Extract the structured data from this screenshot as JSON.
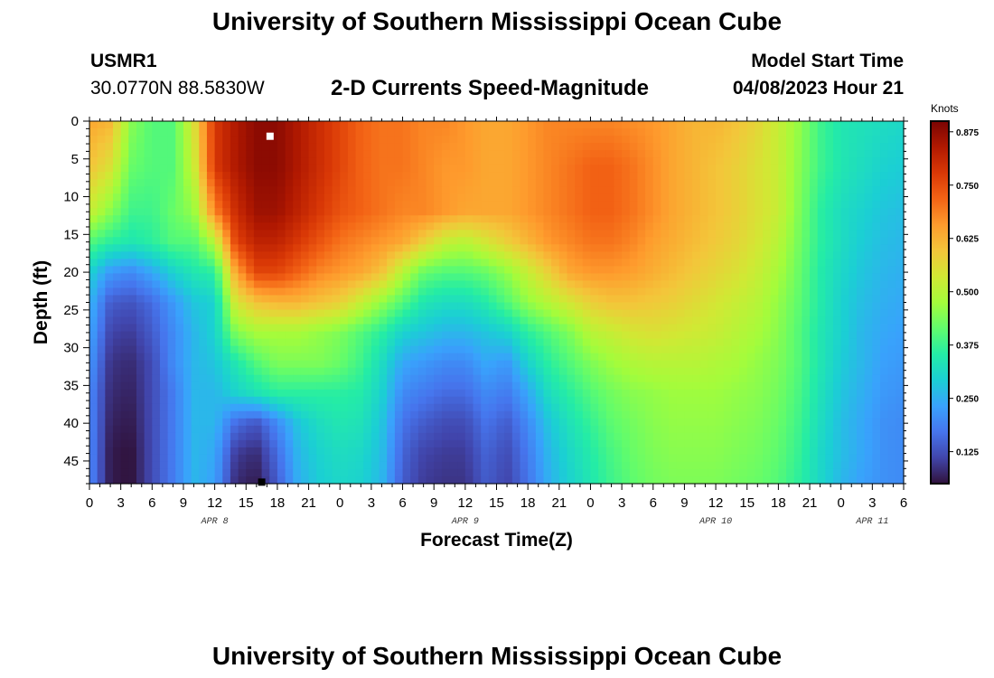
{
  "page": {
    "title": "University of Southern Mississippi Ocean Cube",
    "footer_title": "University of Southern Mississippi Ocean Cube",
    "station_id": "USMR1",
    "coordinates": "30.0770N  88.5830W",
    "plot_title": "2-D Currents Speed-Magnitude",
    "model_start_label": "Model Start Time",
    "model_start_value": "04/08/2023 Hour 21"
  },
  "colors": {
    "background": "#ffffff",
    "colormap": [
      "#30123b",
      "#4145ab",
      "#4675ed",
      "#39a2fc",
      "#1bcfd4",
      "#24eca6",
      "#61fc6c",
      "#a4fc3b",
      "#d1e834",
      "#f3c63a",
      "#fe9b2d",
      "#f36315",
      "#d93806",
      "#b11901",
      "#7a0403"
    ]
  },
  "chart_data": {
    "type": "heatmap",
    "title": "2-D Currents Speed-Magnitude",
    "xlabel": "Forecast Time(Z)",
    "ylabel": "Depth (ft)",
    "x_unit": "forecast hours from 04/08/2023 00Z",
    "xlim": [
      0,
      78
    ],
    "ylim": [
      0,
      48
    ],
    "y_inverted": true,
    "x_ticks": [
      {
        "hour": 0,
        "label": "0"
      },
      {
        "hour": 3,
        "label": "3"
      },
      {
        "hour": 6,
        "label": "6"
      },
      {
        "hour": 9,
        "label": "9"
      },
      {
        "hour": 12,
        "label": "12"
      },
      {
        "hour": 15,
        "label": "15"
      },
      {
        "hour": 18,
        "label": "18"
      },
      {
        "hour": 21,
        "label": "21"
      },
      {
        "hour": 24,
        "label": "0"
      },
      {
        "hour": 27,
        "label": "3"
      },
      {
        "hour": 30,
        "label": "6"
      },
      {
        "hour": 33,
        "label": "9"
      },
      {
        "hour": 36,
        "label": "12"
      },
      {
        "hour": 39,
        "label": "15"
      },
      {
        "hour": 42,
        "label": "18"
      },
      {
        "hour": 45,
        "label": "21"
      },
      {
        "hour": 48,
        "label": "0"
      },
      {
        "hour": 51,
        "label": "3"
      },
      {
        "hour": 54,
        "label": "6"
      },
      {
        "hour": 57,
        "label": "9"
      },
      {
        "hour": 60,
        "label": "12"
      },
      {
        "hour": 63,
        "label": "15"
      },
      {
        "hour": 66,
        "label": "18"
      },
      {
        "hour": 69,
        "label": "21"
      },
      {
        "hour": 72,
        "label": "0"
      },
      {
        "hour": 75,
        "label": "3"
      },
      {
        "hour": 78,
        "label": "6"
      }
    ],
    "date_labels": [
      {
        "hour": 12,
        "label": "APR 8"
      },
      {
        "hour": 36,
        "label": "APR 9"
      },
      {
        "hour": 60,
        "label": "APR 10"
      },
      {
        "hour": 75,
        "label": "APR 11"
      }
    ],
    "y_ticks": [
      0,
      5,
      10,
      15,
      20,
      25,
      30,
      35,
      40,
      45
    ],
    "colorbar": {
      "units": "Knots",
      "range": [
        0.05,
        0.9
      ],
      "ticks": [
        0.125,
        0.25,
        0.375,
        0.5,
        0.625,
        0.75,
        0.875
      ],
      "tick_labels": [
        "0.125",
        "0.250",
        "0.375",
        "0.500",
        "0.625",
        "0.750",
        "0.875"
      ]
    },
    "depths_ft": [
      0,
      6,
      12,
      16,
      20,
      24,
      28,
      32,
      36,
      40,
      44,
      48
    ],
    "hours": [
      0,
      2,
      4,
      6,
      8,
      10,
      12,
      14,
      16,
      18,
      20,
      22,
      24,
      26,
      28,
      30,
      32,
      34,
      36,
      38,
      40,
      42,
      44,
      46,
      48,
      50,
      52,
      54,
      56,
      58,
      60,
      62,
      64,
      66,
      68,
      70,
      72,
      74,
      76,
      78
    ],
    "speed_knots": [
      [
        0.64,
        0.62,
        0.45,
        0.4,
        0.4,
        0.55,
        0.78,
        0.84,
        0.88,
        0.88,
        0.84,
        0.8,
        0.76,
        0.72,
        0.7,
        0.7,
        0.68,
        0.68,
        0.66,
        0.64,
        0.64,
        0.66,
        0.68,
        0.68,
        0.68,
        0.68,
        0.67,
        0.66,
        0.64,
        0.62,
        0.62,
        0.6,
        0.57,
        0.52,
        0.46,
        0.38,
        0.34,
        0.33,
        0.32,
        0.31
      ],
      [
        0.6,
        0.55,
        0.42,
        0.4,
        0.4,
        0.52,
        0.78,
        0.84,
        0.88,
        0.88,
        0.84,
        0.8,
        0.76,
        0.72,
        0.7,
        0.7,
        0.68,
        0.66,
        0.66,
        0.64,
        0.64,
        0.66,
        0.68,
        0.7,
        0.72,
        0.72,
        0.7,
        0.67,
        0.64,
        0.62,
        0.6,
        0.58,
        0.55,
        0.52,
        0.45,
        0.38,
        0.34,
        0.32,
        0.3,
        0.29
      ],
      [
        0.52,
        0.45,
        0.38,
        0.38,
        0.42,
        0.46,
        0.68,
        0.8,
        0.86,
        0.86,
        0.82,
        0.78,
        0.74,
        0.72,
        0.7,
        0.68,
        0.68,
        0.66,
        0.64,
        0.64,
        0.64,
        0.66,
        0.68,
        0.7,
        0.72,
        0.72,
        0.7,
        0.67,
        0.64,
        0.62,
        0.6,
        0.58,
        0.55,
        0.52,
        0.44,
        0.36,
        0.32,
        0.3,
        0.28,
        0.27
      ],
      [
        0.4,
        0.36,
        0.34,
        0.36,
        0.4,
        0.4,
        0.5,
        0.76,
        0.82,
        0.82,
        0.78,
        0.74,
        0.7,
        0.68,
        0.66,
        0.64,
        0.58,
        0.52,
        0.5,
        0.54,
        0.58,
        0.62,
        0.66,
        0.68,
        0.7,
        0.7,
        0.68,
        0.65,
        0.63,
        0.61,
        0.59,
        0.57,
        0.54,
        0.5,
        0.43,
        0.36,
        0.32,
        0.29,
        0.27,
        0.26
      ],
      [
        0.3,
        0.22,
        0.2,
        0.24,
        0.3,
        0.34,
        0.36,
        0.64,
        0.76,
        0.76,
        0.72,
        0.68,
        0.66,
        0.64,
        0.6,
        0.5,
        0.42,
        0.4,
        0.4,
        0.42,
        0.46,
        0.52,
        0.58,
        0.64,
        0.66,
        0.66,
        0.65,
        0.63,
        0.61,
        0.59,
        0.57,
        0.55,
        0.52,
        0.48,
        0.42,
        0.35,
        0.31,
        0.28,
        0.26,
        0.25
      ],
      [
        0.26,
        0.14,
        0.13,
        0.16,
        0.22,
        0.28,
        0.3,
        0.54,
        0.6,
        0.62,
        0.62,
        0.6,
        0.58,
        0.52,
        0.46,
        0.4,
        0.34,
        0.32,
        0.32,
        0.35,
        0.4,
        0.46,
        0.5,
        0.54,
        0.58,
        0.6,
        0.6,
        0.59,
        0.58,
        0.56,
        0.54,
        0.52,
        0.5,
        0.46,
        0.41,
        0.35,
        0.3,
        0.27,
        0.25,
        0.24
      ],
      [
        0.24,
        0.11,
        0.1,
        0.14,
        0.2,
        0.26,
        0.3,
        0.44,
        0.48,
        0.48,
        0.48,
        0.46,
        0.44,
        0.4,
        0.36,
        0.3,
        0.28,
        0.26,
        0.26,
        0.28,
        0.3,
        0.36,
        0.4,
        0.44,
        0.5,
        0.52,
        0.54,
        0.55,
        0.54,
        0.53,
        0.52,
        0.5,
        0.48,
        0.45,
        0.4,
        0.34,
        0.3,
        0.26,
        0.24,
        0.23
      ],
      [
        0.22,
        0.09,
        0.08,
        0.12,
        0.2,
        0.26,
        0.28,
        0.34,
        0.4,
        0.44,
        0.44,
        0.44,
        0.42,
        0.38,
        0.32,
        0.24,
        0.22,
        0.2,
        0.2,
        0.24,
        0.22,
        0.3,
        0.36,
        0.4,
        0.44,
        0.47,
        0.49,
        0.5,
        0.5,
        0.5,
        0.49,
        0.48,
        0.46,
        0.44,
        0.4,
        0.34,
        0.29,
        0.26,
        0.23,
        0.22
      ],
      [
        0.2,
        0.08,
        0.07,
        0.12,
        0.18,
        0.26,
        0.26,
        0.3,
        0.33,
        0.36,
        0.36,
        0.36,
        0.36,
        0.35,
        0.3,
        0.2,
        0.18,
        0.16,
        0.16,
        0.2,
        0.18,
        0.24,
        0.32,
        0.36,
        0.4,
        0.43,
        0.45,
        0.46,
        0.47,
        0.47,
        0.47,
        0.46,
        0.45,
        0.43,
        0.39,
        0.33,
        0.28,
        0.25,
        0.22,
        0.21
      ],
      [
        0.2,
        0.07,
        0.06,
        0.12,
        0.18,
        0.26,
        0.26,
        0.16,
        0.13,
        0.2,
        0.28,
        0.32,
        0.34,
        0.33,
        0.28,
        0.17,
        0.14,
        0.12,
        0.12,
        0.17,
        0.14,
        0.2,
        0.28,
        0.33,
        0.37,
        0.41,
        0.43,
        0.45,
        0.46,
        0.46,
        0.46,
        0.45,
        0.44,
        0.42,
        0.38,
        0.32,
        0.27,
        0.24,
        0.21,
        0.2
      ],
      [
        0.2,
        0.06,
        0.05,
        0.12,
        0.18,
        0.26,
        0.24,
        0.1,
        0.08,
        0.16,
        0.26,
        0.3,
        0.32,
        0.31,
        0.27,
        0.15,
        0.11,
        0.1,
        0.1,
        0.15,
        0.12,
        0.18,
        0.26,
        0.31,
        0.35,
        0.39,
        0.42,
        0.44,
        0.45,
        0.45,
        0.45,
        0.44,
        0.43,
        0.41,
        0.37,
        0.31,
        0.27,
        0.24,
        0.21,
        0.2
      ],
      [
        0.2,
        0.06,
        0.05,
        0.12,
        0.18,
        0.26,
        0.23,
        0.08,
        0.06,
        0.14,
        0.25,
        0.29,
        0.31,
        0.3,
        0.26,
        0.14,
        0.1,
        0.09,
        0.09,
        0.14,
        0.11,
        0.17,
        0.25,
        0.3,
        0.34,
        0.38,
        0.41,
        0.43,
        0.44,
        0.44,
        0.44,
        0.43,
        0.42,
        0.4,
        0.36,
        0.31,
        0.26,
        0.23,
        0.21,
        0.2
      ]
    ],
    "markers": [
      {
        "hour": 17.3,
        "depth_ft": 2,
        "color": "#ffffff"
      },
      {
        "hour": 16.5,
        "depth_ft": 47.8,
        "color": "#000000"
      }
    ]
  }
}
